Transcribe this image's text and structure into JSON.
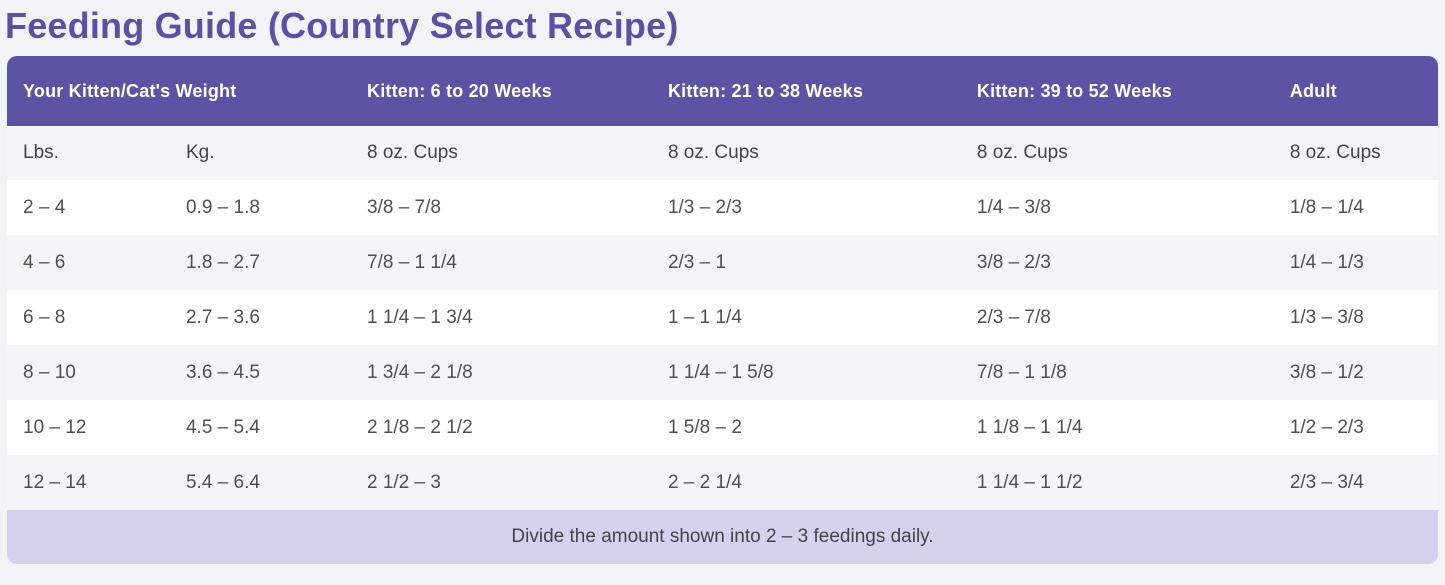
{
  "page": {
    "title": "Feeding Guide (Country Select Recipe)"
  },
  "colors": {
    "title_text": "#5a51a5",
    "header_bg": "#5b54a5",
    "header_text": "#ffffff",
    "alt_row_bg": "#f5f5f8",
    "footer_bg": "#d5d2ee",
    "body_text": "#4a5056",
    "page_bg": "#f2f3f7"
  },
  "table": {
    "header_groups": [
      {
        "label": "Your Kitten/Cat's Weight",
        "colspan": 2
      },
      {
        "label": "Kitten: 6 to 20 Weeks",
        "colspan": 1
      },
      {
        "label": "Kitten: 21 to 38 Weeks",
        "colspan": 1
      },
      {
        "label": "Kitten: 39 to 52 Weeks",
        "colspan": 1
      },
      {
        "label": "Adult",
        "colspan": 1
      }
    ],
    "subheaders": [
      "Lbs.",
      "Kg.",
      "8 oz. Cups",
      "8 oz. Cups",
      "8 oz. Cups",
      "8 oz. Cups"
    ],
    "rows": [
      [
        "2 – 4",
        "0.9 – 1.8",
        "3/8 – 7/8",
        "1/3 – 2/3",
        "1/4 – 3/8",
        "1/8 – 1/4"
      ],
      [
        "4 – 6",
        "1.8 – 2.7",
        "7/8 – 1 1/4",
        "2/3 – 1",
        "3/8 – 2/3",
        "1/4 – 1/3"
      ],
      [
        "6 – 8",
        "2.7 – 3.6",
        "1 1/4 – 1 3/4",
        "1 – 1 1/4",
        "2/3 – 7/8",
        "1/3 – 3/8"
      ],
      [
        "8 – 10",
        "3.6 – 4.5",
        "1 3/4 – 2 1/8",
        "1 1/4 – 1 5/8",
        "7/8 – 1 1/8",
        "3/8 – 1/2"
      ],
      [
        "10 – 12",
        "4.5 – 5.4",
        "2 1/8 – 2 1/2",
        "1 5/8 – 2",
        "1 1/8 – 1 1/4",
        "1/2 – 2/3"
      ],
      [
        "12 – 14",
        "5.4 – 6.4",
        "2 1/2 – 3",
        "2 – 2 1/4",
        "1 1/4 – 1 1/2",
        "2/3 – 3/4"
      ]
    ],
    "footer_note": "Divide the amount shown into 2 – 3 feedings daily."
  }
}
